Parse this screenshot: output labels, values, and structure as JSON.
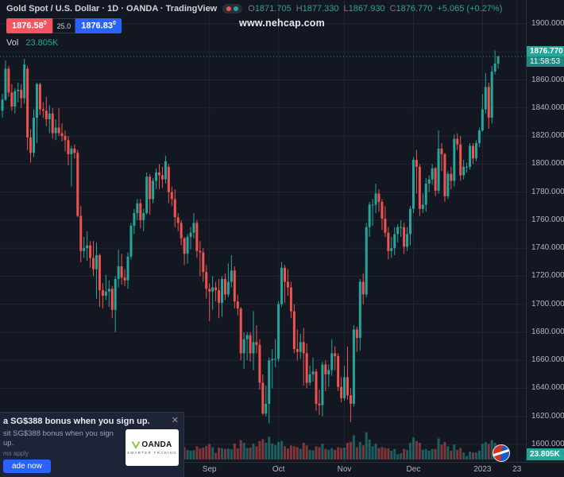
{
  "header": {
    "title": "Gold Spot / U.S. Dollar · 1D · OANDA · TradingView",
    "ohlc": {
      "o_label": "O",
      "o_value": "1871.705",
      "h_label": "H",
      "h_value": "1877.330",
      "l_label": "L",
      "l_value": "1867.930",
      "c_label": "C",
      "c_value": "1876.770",
      "change": "+5.065 (+0.27%)"
    },
    "volume_row": {
      "label": "Vol",
      "value": "23.805K"
    }
  },
  "trade_panel": {
    "sell_price": "1876.58",
    "sell_sup": "0",
    "spread": "25.0",
    "buy_price": "1876.83",
    "buy_sup": "0"
  },
  "watermark": "www.nehcap.com",
  "price_badge": {
    "price": "1876.770",
    "countdown": "11:58:53"
  },
  "volume_badge": "23.805K",
  "ad": {
    "headline": "a SG$388 bonus when you sign up.",
    "close": "✕",
    "description": "sit SG$388 bonus when you sign up.",
    "terms": "ms apply",
    "cta": "ade now",
    "logo_text": "OANDA",
    "logo_tagline": "SMARTER TRADING"
  },
  "colors": {
    "up": "#26a69a",
    "down": "#ef5350",
    "up_vol": "rgba(38,166,154,0.5)",
    "down_vol": "rgba(239,83,80,0.5)",
    "grid": "#212635",
    "bg": "#131722",
    "axis_text": "#b2b5be",
    "sell": "#f7525f",
    "buy": "#2962ff",
    "badge": "#26a69a"
  },
  "chart_data": {
    "type": "candlestick",
    "title": "Gold Spot / U.S. Dollar",
    "timeframe": "1D",
    "exchange": "OANDA",
    "ylabel": "Price (USD)",
    "y_axis": {
      "min": 1600,
      "max": 1900,
      "tick_step": 20,
      "tick_labels": [
        "1900.000",
        "1880.000",
        "1860.000",
        "1840.000",
        "1820.000",
        "1800.000",
        "1780.000",
        "1760.000",
        "1740.000",
        "1720.000",
        "1700.000",
        "1680.000",
        "1660.000",
        "1640.000",
        "1620.000",
        "1600.000"
      ]
    },
    "x_axis": {
      "labels": [
        {
          "text": "Sep",
          "day": 66
        },
        {
          "text": "Oct",
          "day": 88
        },
        {
          "text": "Nov",
          "day": 109
        },
        {
          "text": "Dec",
          "day": 131
        },
        {
          "text": "2023",
          "day": 153
        },
        {
          "text": "23",
          "day": 164
        }
      ]
    },
    "last": {
      "o": 1871.705,
      "h": 1877.33,
      "l": 1867.93,
      "c": 1876.77,
      "change": "+5.065 (+0.27%)",
      "volume": "23.805K"
    },
    "columns": [
      "open",
      "high",
      "low",
      "close",
      "volume_k"
    ],
    "candles": [
      [
        1838,
        1850,
        1833,
        1846,
        28
      ],
      [
        1846,
        1874,
        1845,
        1868,
        35
      ],
      [
        1868,
        1870,
        1848,
        1851,
        30
      ],
      [
        1851,
        1857,
        1838,
        1841,
        26
      ],
      [
        1841,
        1854,
        1836,
        1852,
        25
      ],
      [
        1852,
        1858,
        1844,
        1853,
        24
      ],
      [
        1853,
        1857,
        1840,
        1847,
        26
      ],
      [
        1847,
        1875,
        1843,
        1871,
        42
      ],
      [
        1868,
        1870,
        1810,
        1819,
        55
      ],
      [
        1819,
        1825,
        1801,
        1808,
        44
      ],
      [
        1808,
        1839,
        1805,
        1833,
        40
      ],
      [
        1833,
        1858,
        1815,
        1857,
        38
      ],
      [
        1857,
        1858,
        1835,
        1839,
        33
      ],
      [
        1839,
        1844,
        1833,
        1838,
        18
      ],
      [
        1838,
        1848,
        1827,
        1832,
        24
      ],
      [
        1832,
        1842,
        1822,
        1836,
        25
      ],
      [
        1836,
        1840,
        1818,
        1822,
        26
      ],
      [
        1822,
        1832,
        1817,
        1826,
        22
      ],
      [
        1826,
        1840,
        1820,
        1822,
        21
      ],
      [
        1822,
        1829,
        1816,
        1820,
        20
      ],
      [
        1820,
        1824,
        1809,
        1817,
        23
      ],
      [
        1817,
        1820,
        1799,
        1807,
        28
      ],
      [
        1807,
        1813,
        1784,
        1811,
        30
      ],
      [
        1811,
        1814,
        1804,
        1808,
        14
      ],
      [
        1808,
        1810,
        1762,
        1763,
        48
      ],
      [
        1763,
        1770,
        1730,
        1738,
        46
      ],
      [
        1738,
        1748,
        1733,
        1740,
        32
      ],
      [
        1740,
        1752,
        1731,
        1742,
        30
      ],
      [
        1742,
        1745,
        1726,
        1733,
        27
      ],
      [
        1733,
        1745,
        1720,
        1725,
        29
      ],
      [
        1725,
        1744,
        1704,
        1735,
        36
      ],
      [
        1735,
        1736,
        1698,
        1710,
        38
      ],
      [
        1710,
        1715,
        1697,
        1706,
        30
      ],
      [
        1706,
        1721,
        1703,
        1709,
        24
      ],
      [
        1709,
        1717,
        1698,
        1711,
        25
      ],
      [
        1711,
        1713,
        1690,
        1696,
        28
      ],
      [
        1696,
        1720,
        1680,
        1718,
        40
      ],
      [
        1718,
        1739,
        1712,
        1727,
        32
      ],
      [
        1727,
        1736,
        1714,
        1719,
        22
      ],
      [
        1719,
        1725,
        1713,
        1717,
        21
      ],
      [
        1717,
        1737,
        1711,
        1734,
        30
      ],
      [
        1734,
        1758,
        1732,
        1756,
        34
      ],
      [
        1756,
        1768,
        1750,
        1765,
        33
      ],
      [
        1765,
        1775,
        1760,
        1772,
        26
      ],
      [
        1772,
        1775,
        1754,
        1760,
        27
      ],
      [
        1760,
        1768,
        1752,
        1765,
        24
      ],
      [
        1765,
        1794,
        1764,
        1791,
        34
      ],
      [
        1791,
        1793,
        1764,
        1775,
        32
      ],
      [
        1775,
        1790,
        1772,
        1788,
        24
      ],
      [
        1788,
        1797,
        1782,
        1794,
        25
      ],
      [
        1794,
        1800,
        1782,
        1792,
        27
      ],
      [
        1792,
        1798,
        1783,
        1789,
        23
      ],
      [
        1789,
        1806,
        1786,
        1802,
        26
      ],
      [
        1798,
        1800,
        1772,
        1780,
        28
      ],
      [
        1780,
        1784,
        1770,
        1775,
        22
      ],
      [
        1775,
        1782,
        1755,
        1762,
        27
      ],
      [
        1762,
        1765,
        1752,
        1758,
        21
      ],
      [
        1758,
        1760,
        1742,
        1747,
        26
      ],
      [
        1747,
        1748,
        1728,
        1736,
        28
      ],
      [
        1736,
        1750,
        1729,
        1748,
        22
      ],
      [
        1748,
        1755,
        1739,
        1751,
        20
      ],
      [
        1751,
        1765,
        1747,
        1758,
        21
      ],
      [
        1758,
        1760,
        1733,
        1738,
        30
      ],
      [
        1738,
        1745,
        1720,
        1737,
        25
      ],
      [
        1737,
        1740,
        1716,
        1723,
        27
      ],
      [
        1723,
        1728,
        1704,
        1711,
        31
      ],
      [
        1711,
        1715,
        1688,
        1709,
        35
      ],
      [
        1709,
        1720,
        1696,
        1712,
        28
      ],
      [
        1712,
        1716,
        1702,
        1710,
        15
      ],
      [
        1710,
        1718,
        1690,
        1701,
        27
      ],
      [
        1701,
        1720,
        1691,
        1718,
        26
      ],
      [
        1718,
        1722,
        1703,
        1707,
        24
      ],
      [
        1707,
        1729,
        1705,
        1716,
        25
      ],
      [
        1716,
        1735,
        1712,
        1724,
        23
      ],
      [
        1724,
        1727,
        1697,
        1702,
        36
      ],
      [
        1702,
        1707,
        1692,
        1697,
        25
      ],
      [
        1697,
        1698,
        1660,
        1665,
        44
      ],
      [
        1665,
        1680,
        1654,
        1675,
        38
      ],
      [
        1675,
        1680,
        1660,
        1678,
        26
      ],
      [
        1678,
        1680,
        1659,
        1665,
        27
      ],
      [
        1665,
        1695,
        1653,
        1673,
        36
      ],
      [
        1673,
        1685,
        1665,
        1671,
        30
      ],
      [
        1671,
        1675,
        1639,
        1644,
        42
      ],
      [
        1644,
        1650,
        1621,
        1622,
        46
      ],
      [
        1622,
        1642,
        1620,
        1629,
        38
      ],
      [
        1629,
        1662,
        1615,
        1660,
        52
      ],
      [
        1660,
        1668,
        1640,
        1661,
        36
      ],
      [
        1661,
        1675,
        1655,
        1661,
        33
      ],
      [
        1661,
        1702,
        1659,
        1700,
        40
      ],
      [
        1700,
        1730,
        1698,
        1726,
        42
      ],
      [
        1726,
        1728,
        1701,
        1716,
        30
      ],
      [
        1716,
        1725,
        1706,
        1712,
        25
      ],
      [
        1712,
        1716,
        1690,
        1695,
        32
      ],
      [
        1695,
        1700,
        1665,
        1668,
        30
      ],
      [
        1668,
        1682,
        1660,
        1666,
        28
      ],
      [
        1666,
        1679,
        1661,
        1673,
        24
      ],
      [
        1673,
        1683,
        1642,
        1665,
        38
      ],
      [
        1665,
        1672,
        1640,
        1644,
        32
      ],
      [
        1644,
        1656,
        1642,
        1650,
        22
      ],
      [
        1650,
        1662,
        1645,
        1652,
        21
      ],
      [
        1652,
        1654,
        1624,
        1629,
        30
      ],
      [
        1629,
        1639,
        1621,
        1628,
        28
      ],
      [
        1628,
        1659,
        1620,
        1657,
        36
      ],
      [
        1657,
        1660,
        1638,
        1650,
        24
      ],
      [
        1650,
        1657,
        1641,
        1653,
        22
      ],
      [
        1653,
        1675,
        1649,
        1665,
        26
      ],
      [
        1665,
        1670,
        1653,
        1663,
        22
      ],
      [
        1663,
        1665,
        1638,
        1641,
        28
      ],
      [
        1641,
        1648,
        1630,
        1633,
        26
      ],
      [
        1633,
        1656,
        1631,
        1648,
        27
      ],
      [
        1648,
        1670,
        1632,
        1635,
        38
      ],
      [
        1635,
        1640,
        1616,
        1629,
        40
      ],
      [
        1629,
        1685,
        1627,
        1682,
        55
      ],
      [
        1682,
        1684,
        1666,
        1676,
        28
      ],
      [
        1676,
        1718,
        1667,
        1716,
        40
      ],
      [
        1716,
        1722,
        1700,
        1707,
        32
      ],
      [
        1707,
        1758,
        1705,
        1755,
        62
      ],
      [
        1755,
        1773,
        1748,
        1771,
        45
      ],
      [
        1771,
        1775,
        1756,
        1771,
        30
      ],
      [
        1771,
        1786,
        1765,
        1779,
        36
      ],
      [
        1779,
        1782,
        1766,
        1773,
        26
      ],
      [
        1773,
        1775,
        1753,
        1761,
        28
      ],
      [
        1761,
        1770,
        1748,
        1751,
        26
      ],
      [
        1751,
        1755,
        1732,
        1738,
        25
      ],
      [
        1738,
        1748,
        1733,
        1740,
        20
      ],
      [
        1740,
        1755,
        1735,
        1750,
        24
      ],
      [
        1750,
        1757,
        1744,
        1755,
        12
      ],
      [
        1755,
        1760,
        1748,
        1755,
        14
      ],
      [
        1755,
        1758,
        1736,
        1741,
        24
      ],
      [
        1741,
        1755,
        1738,
        1750,
        22
      ],
      [
        1750,
        1770,
        1742,
        1768,
        38
      ],
      [
        1768,
        1805,
        1765,
        1803,
        50
      ],
      [
        1803,
        1810,
        1779,
        1798,
        42
      ],
      [
        1798,
        1800,
        1763,
        1768,
        38
      ],
      [
        1768,
        1779,
        1765,
        1771,
        22
      ],
      [
        1771,
        1790,
        1766,
        1786,
        24
      ],
      [
        1786,
        1792,
        1780,
        1789,
        20
      ],
      [
        1789,
        1800,
        1785,
        1797,
        24
      ],
      [
        1797,
        1798,
        1777,
        1781,
        24
      ],
      [
        1781,
        1824,
        1779,
        1811,
        48
      ],
      [
        1811,
        1815,
        1795,
        1807,
        34
      ],
      [
        1807,
        1808,
        1773,
        1777,
        40
      ],
      [
        1777,
        1795,
        1775,
        1793,
        30
      ],
      [
        1793,
        1798,
        1782,
        1788,
        20
      ],
      [
        1788,
        1821,
        1784,
        1818,
        34
      ],
      [
        1818,
        1822,
        1810,
        1814,
        22
      ],
      [
        1814,
        1820,
        1788,
        1792,
        26
      ],
      [
        1792,
        1803,
        1789,
        1798,
        16
      ],
      [
        1798,
        1801,
        1794,
        1798,
        8
      ],
      [
        1798,
        1815,
        1796,
        1813,
        18
      ],
      [
        1813,
        1815,
        1800,
        1804,
        16
      ],
      [
        1804,
        1817,
        1802,
        1815,
        16
      ],
      [
        1815,
        1826,
        1812,
        1824,
        20
      ],
      [
        1824,
        1850,
        1823,
        1839,
        36
      ],
      [
        1839,
        1865,
        1836,
        1855,
        40
      ],
      [
        1855,
        1858,
        1825,
        1833,
        36
      ],
      [
        1833,
        1870,
        1829,
        1866,
        44
      ],
      [
        1866,
        1881,
        1864,
        1871.7,
        38
      ],
      [
        1871.705,
        1877.33,
        1867.93,
        1876.77,
        23.805
      ]
    ]
  }
}
